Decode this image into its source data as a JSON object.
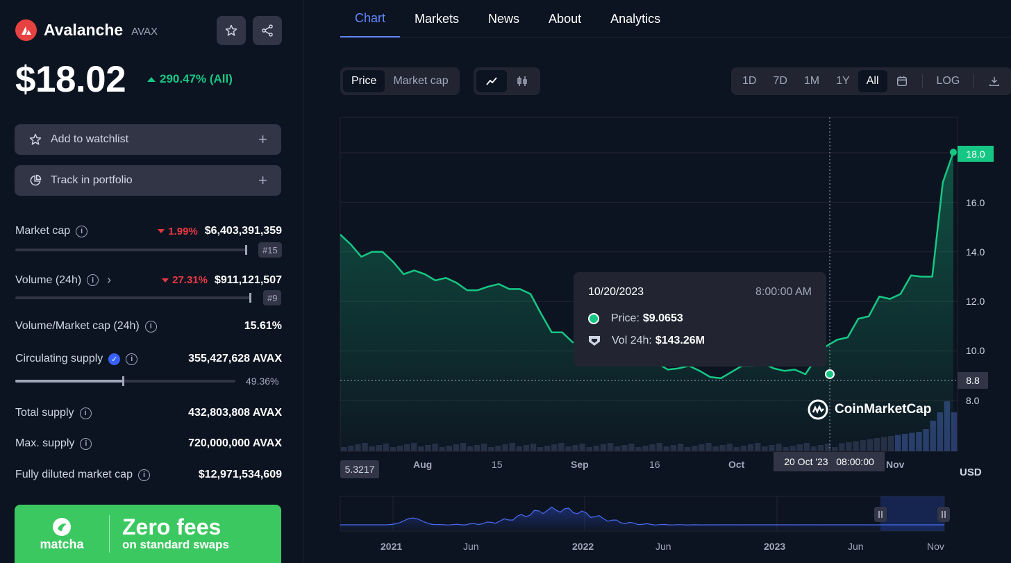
{
  "coin": {
    "name": "Avalanche",
    "symbol": "AVAX",
    "price": "$18.02",
    "change_all": "290.47% (All)"
  },
  "actions": {
    "watchlist": "Add to watchlist",
    "portfolio": "Track in portfolio"
  },
  "stats": {
    "market_cap": {
      "label": "Market cap",
      "change": "1.99%",
      "value": "$6,403,391,359",
      "rank": "#15"
    },
    "volume": {
      "label": "Volume (24h)",
      "change": "27.31%",
      "value": "$911,121,507",
      "rank": "#9"
    },
    "vol_mcap": {
      "label": "Volume/Market cap (24h)",
      "value": "15.61%"
    },
    "circ": {
      "label": "Circulating supply",
      "value": "355,427,628 AVAX",
      "percent": "49.36%"
    },
    "total": {
      "label": "Total supply",
      "value": "432,803,808 AVAX"
    },
    "max": {
      "label": "Max. supply",
      "value": "720,000,000 AVAX"
    },
    "fdmc": {
      "label": "Fully diluted market cap",
      "value": "$12,971,534,609"
    }
  },
  "banner": {
    "brand": "matcha",
    "headline": "Zero fees",
    "sub": "on standard swaps"
  },
  "tabs": [
    "Chart",
    "Markets",
    "News",
    "About",
    "Analytics"
  ],
  "chart_type_toggle": [
    "Price",
    "Market cap"
  ],
  "ranges": [
    "1D",
    "7D",
    "1M",
    "1Y",
    "All"
  ],
  "log_label": "LOG",
  "tooltip": {
    "date": "10/20/2023",
    "time": "8:00:00 AM",
    "price_label": "Price:",
    "price": "$9.0653",
    "vol_label": "Vol 24h:",
    "vol": "$143.26M"
  },
  "tags": {
    "current": "18.0",
    "crosshair": "8.8",
    "min": "5.3217",
    "date": "20 Oct '23   08:00:00"
  },
  "currency": "USD",
  "watermark": "CoinMarketCap",
  "colors": {
    "up": "#16c784",
    "down": "#ea3943",
    "accent": "#6188ff",
    "bg": "#0d1421",
    "panel": "#323546"
  },
  "chart_data": {
    "type": "line",
    "title": "",
    "xlabel": "",
    "ylabel": "USD",
    "y_ticks": [
      "18.0",
      "16.0",
      "14.0",
      "12.0",
      "10.0",
      "8.0"
    ],
    "x_ticks": [
      "Aug",
      "15",
      "Sep",
      "16",
      "Oct",
      "Nov"
    ],
    "ylim": [
      7.0,
      19.5
    ],
    "series": [
      {
        "values": [
          14.7,
          14.3,
          13.8,
          14.0,
          14.0,
          13.6,
          13.1,
          13.25,
          13.1,
          12.85,
          12.95,
          12.75,
          12.45,
          12.45,
          12.6,
          12.7,
          12.5,
          12.5,
          12.3,
          11.5,
          10.75,
          10.75,
          10.35,
          10.35,
          10.1,
          10.05,
          10.3,
          10.8,
          10.9,
          10.3,
          9.5,
          9.25,
          9.3,
          9.4,
          9.2,
          8.95,
          8.9,
          9.15,
          9.4,
          9.4,
          9.5,
          9.3,
          9.2,
          9.25,
          9.0653,
          9.7,
          10.2,
          10.45,
          10.55,
          11.3,
          11.4,
          12.2,
          12.1,
          12.3,
          13.05,
          13.0,
          13.0,
          16.8,
          18.02
        ]
      }
    ],
    "overview_x_ticks": [
      "2021",
      "Jun",
      "2022",
      "Jun",
      "2023",
      "Jun",
      "Nov"
    ]
  }
}
